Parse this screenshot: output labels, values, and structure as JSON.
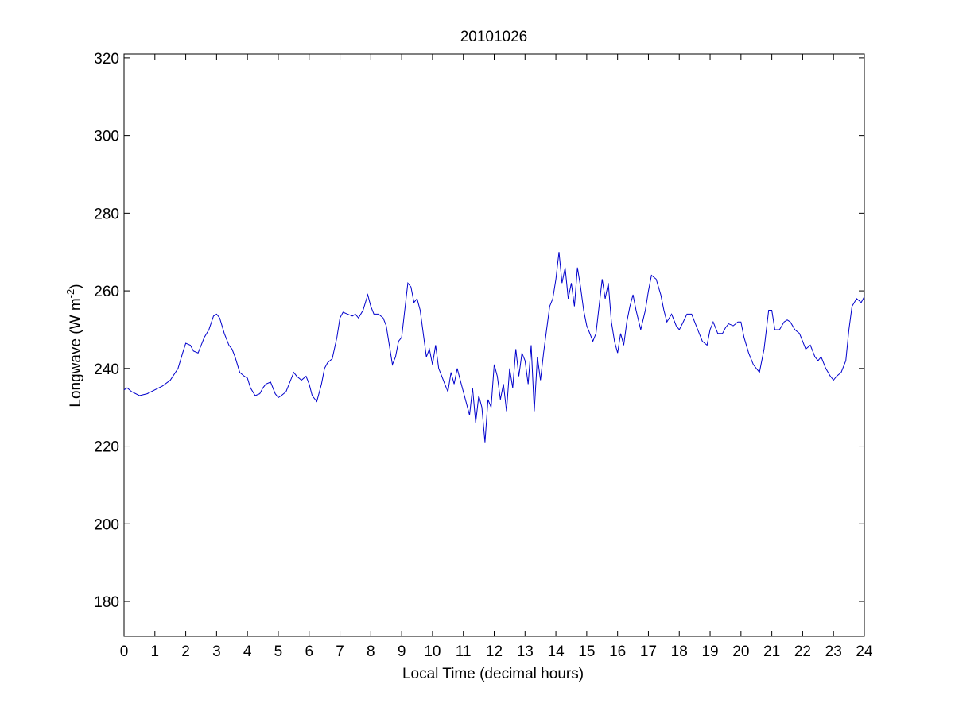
{
  "chart_data": {
    "type": "line",
    "title": "20101026",
    "xlabel": "Local Time (decimal hours)",
    "ylabel": "Longwave (W m",
    "ylabel_sup": "-2",
    "ylabel_suffix": ")",
    "xlim": [
      0,
      24
    ],
    "ylim": [
      171,
      321
    ],
    "xticks": [
      0,
      1,
      2,
      3,
      4,
      5,
      6,
      7,
      8,
      9,
      10,
      11,
      12,
      13,
      14,
      15,
      16,
      17,
      18,
      19,
      20,
      21,
      22,
      23,
      24
    ],
    "yticks": [
      180,
      200,
      220,
      240,
      260,
      280,
      300,
      320
    ],
    "grid": false,
    "line_color": "#0000cc",
    "series": [
      {
        "x": [
          0,
          0.1,
          0.25,
          0.5,
          0.75,
          1.0,
          1.25,
          1.5,
          1.75,
          1.9,
          2.0,
          2.15,
          2.25,
          2.4,
          2.5,
          2.6,
          2.75,
          2.9,
          3.0,
          3.1,
          3.25,
          3.4,
          3.5,
          3.6,
          3.75,
          3.9,
          4.0,
          4.1,
          4.25,
          4.4,
          4.5,
          4.6,
          4.75,
          4.9,
          5.0,
          5.1,
          5.25,
          5.4,
          5.5,
          5.6,
          5.75,
          5.9,
          6.0,
          6.1,
          6.25,
          6.4,
          6.5,
          6.6,
          6.75,
          6.9,
          7.0,
          7.1,
          7.25,
          7.4,
          7.5,
          7.6,
          7.75,
          7.9,
          8.0,
          8.1,
          8.25,
          8.4,
          8.5,
          8.6,
          8.7,
          8.8,
          8.9,
          9.0,
          9.1,
          9.2,
          9.3,
          9.4,
          9.5,
          9.6,
          9.7,
          9.8,
          9.9,
          10.0,
          10.1,
          10.2,
          10.3,
          10.4,
          10.5,
          10.6,
          10.7,
          10.8,
          10.9,
          11.0,
          11.1,
          11.2,
          11.3,
          11.4,
          11.5,
          11.6,
          11.7,
          11.8,
          11.9,
          12.0,
          12.1,
          12.2,
          12.3,
          12.4,
          12.5,
          12.6,
          12.7,
          12.8,
          12.9,
          13.0,
          13.1,
          13.2,
          13.3,
          13.4,
          13.5,
          13.6,
          13.7,
          13.8,
          13.9,
          14.0,
          14.1,
          14.2,
          14.3,
          14.4,
          14.5,
          14.6,
          14.7,
          14.8,
          14.9,
          15.0,
          15.1,
          15.2,
          15.3,
          15.4,
          15.5,
          15.6,
          15.7,
          15.8,
          15.9,
          16.0,
          16.1,
          16.2,
          16.3,
          16.4,
          16.5,
          16.6,
          16.75,
          16.9,
          17.0,
          17.1,
          17.25,
          17.4,
          17.5,
          17.6,
          17.75,
          17.9,
          18.0,
          18.1,
          18.25,
          18.4,
          18.5,
          18.6,
          18.75,
          18.9,
          19.0,
          19.1,
          19.25,
          19.4,
          19.5,
          19.6,
          19.75,
          19.9,
          20.0,
          20.1,
          20.25,
          20.4,
          20.5,
          20.6,
          20.75,
          20.9,
          21.0,
          21.1,
          21.25,
          21.4,
          21.5,
          21.6,
          21.75,
          21.9,
          22.0,
          22.1,
          22.25,
          22.4,
          22.5,
          22.6,
          22.75,
          22.9,
          23.0,
          23.1,
          23.25,
          23.4,
          23.5,
          23.6,
          23.75,
          23.9,
          24.0
        ],
        "y": [
          234.5,
          235,
          234,
          233,
          233.5,
          234.5,
          235.5,
          237,
          240,
          244,
          246.5,
          246,
          244.5,
          244,
          246,
          248,
          250,
          253.5,
          254,
          253,
          249,
          246,
          245,
          243,
          239,
          238,
          237.5,
          235,
          233,
          233.5,
          235,
          236,
          236.5,
          233.5,
          232.5,
          233,
          234,
          237,
          239,
          238,
          237,
          238,
          236,
          233,
          231.5,
          236,
          240,
          241.5,
          242.5,
          248,
          253,
          254.5,
          254,
          253.5,
          254,
          253,
          255,
          259,
          256,
          254,
          254,
          253,
          251,
          246,
          241,
          243,
          247,
          248,
          255,
          262,
          261,
          257,
          258,
          255,
          249,
          243,
          245,
          241,
          246,
          240,
          238,
          236,
          234,
          239,
          236,
          240,
          237,
          234,
          231,
          228,
          235,
          226,
          233,
          230,
          221,
          232,
          230,
          241,
          238,
          232,
          236,
          229,
          240,
          235,
          245,
          238,
          244,
          242,
          236,
          246,
          229,
          243,
          237,
          244,
          250,
          256,
          258,
          263,
          270,
          262,
          266,
          258,
          262,
          256,
          266,
          261,
          255,
          251,
          249,
          247,
          249,
          256,
          263,
          258,
          262,
          252,
          247,
          244,
          249,
          246,
          252,
          256,
          259,
          255,
          250,
          255,
          260,
          264,
          263,
          259,
          255,
          252,
          254,
          251,
          250,
          251.5,
          254,
          254,
          252,
          250,
          247,
          246,
          250,
          252,
          249,
          249,
          250.5,
          251.5,
          251,
          252,
          252,
          248,
          244,
          241,
          240,
          239,
          245,
          255,
          255,
          250,
          250,
          252,
          252.5,
          252,
          250,
          249,
          247,
          245,
          246,
          243,
          242,
          243,
          240,
          238,
          237,
          238,
          239,
          242,
          250,
          256,
          258,
          257,
          258.5
        ]
      }
    ]
  }
}
